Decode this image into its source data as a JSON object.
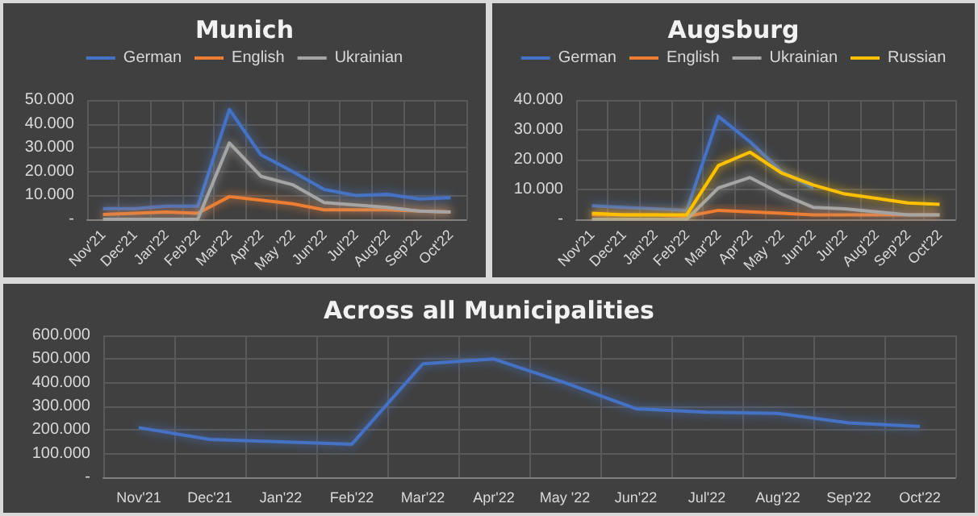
{
  "chart_data": [
    {
      "type": "line",
      "title": "Munich",
      "categories": [
        "Nov'21",
        "Dec'21",
        "Jan'22",
        "Feb'22",
        "Mar'22",
        "Apr'22",
        "May '22",
        "Jun'22",
        "Jul'22",
        "Aug'22",
        "Sep'22",
        "Oct'22"
      ],
      "series": [
        {
          "name": "German",
          "color": "#4472c4",
          "values": [
            4500,
            4500,
            5500,
            5500,
            46000,
            27000,
            20000,
            12500,
            10000,
            10500,
            8500,
            9000
          ]
        },
        {
          "name": "English",
          "color": "#ed7d31",
          "values": [
            2000,
            2500,
            3000,
            2500,
            9500,
            8000,
            6500,
            4000,
            4000,
            4000,
            3500,
            3000
          ]
        },
        {
          "name": "Ukrainian",
          "color": "#a5a5a5",
          "values": [
            0,
            0,
            0,
            0,
            32000,
            18000,
            14500,
            7000,
            6000,
            5000,
            3500,
            3000
          ]
        }
      ],
      "ylim": [
        0,
        50000
      ],
      "yticks": [
        {
          "value": 0,
          "label": "-"
        },
        {
          "value": 10000,
          "label": "10.000"
        },
        {
          "value": 20000,
          "label": "20.000"
        },
        {
          "value": 30000,
          "label": "30.000"
        },
        {
          "value": 40000,
          "label": "40.000"
        },
        {
          "value": 50000,
          "label": "50.000"
        }
      ],
      "grid": true,
      "legend": "top",
      "marker": "none"
    },
    {
      "type": "line",
      "title": "Augsburg",
      "categories": [
        "Nov'21",
        "Dec'21",
        "Jan'22",
        "Feb'22",
        "Mar'22",
        "Apr'22",
        "May '22",
        "Jun'22",
        "Jul'22",
        "Aug'22",
        "Sep'22",
        "Oct'22"
      ],
      "series": [
        {
          "name": "German",
          "color": "#4472c4",
          "values": [
            4500,
            4000,
            3500,
            3000,
            34500,
            26000,
            16000,
            10500,
            null,
            null,
            null,
            null
          ]
        },
        {
          "name": "English",
          "color": "#ed7d31",
          "values": [
            1500,
            1500,
            1500,
            1000,
            3000,
            2500,
            2000,
            1500,
            1500,
            1500,
            1500,
            1500
          ]
        },
        {
          "name": "Ukrainian",
          "color": "#a5a5a5",
          "values": [
            0,
            0,
            0,
            0,
            10500,
            14000,
            8500,
            4000,
            3500,
            2500,
            1500,
            1500
          ]
        },
        {
          "name": "Russian",
          "color": "#ffc000",
          "values": [
            2000,
            1500,
            1500,
            1500,
            18000,
            22500,
            15500,
            11500,
            8500,
            7000,
            5500,
            5000
          ]
        }
      ],
      "ylim": [
        0,
        40000
      ],
      "yticks": [
        {
          "value": 0,
          "label": "-"
        },
        {
          "value": 10000,
          "label": "10.000"
        },
        {
          "value": 20000,
          "label": "20.000"
        },
        {
          "value": 30000,
          "label": "30.000"
        },
        {
          "value": 40000,
          "label": "40.000"
        }
      ],
      "grid": true,
      "legend": "top",
      "marker": "none"
    },
    {
      "type": "line",
      "title": "Across all Municipalities",
      "categories": [
        "Nov'21",
        "Dec'21",
        "Jan'22",
        "Feb'22",
        "Mar'22",
        "Apr'22",
        "May '22",
        "Jun'22",
        "Jul'22",
        "Aug'22",
        "Sep'22",
        "Oct'22"
      ],
      "series": [
        {
          "color": "#4472c4",
          "values": [
            210000,
            160000,
            150000,
            140000,
            480000,
            500000,
            400000,
            290000,
            275000,
            270000,
            230000,
            215000
          ]
        }
      ],
      "ylim": [
        0,
        600000
      ],
      "yticks": [
        {
          "value": 0,
          "label": "-"
        },
        {
          "value": 100000,
          "label": "100.000"
        },
        {
          "value": 200000,
          "label": "200.000"
        },
        {
          "value": 300000,
          "label": "300.000"
        },
        {
          "value": 400000,
          "label": "400.000"
        },
        {
          "value": 500000,
          "label": "500.000"
        },
        {
          "value": 600000,
          "label": "600.000"
        }
      ],
      "grid": true,
      "legend": false,
      "marker": "none"
    }
  ]
}
